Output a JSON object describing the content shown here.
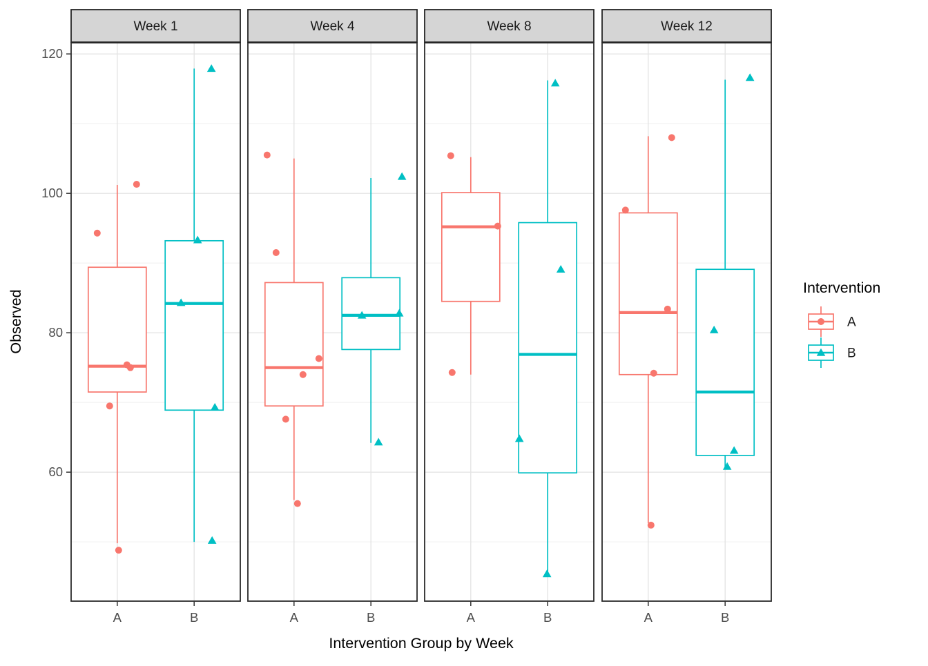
{
  "chart_data": {
    "type": "boxplot",
    "title": "",
    "xlabel": "Intervention Group by Week",
    "ylabel": "Observed",
    "ylim": [
      41.5,
      121.6
    ],
    "y_ticks": [
      60,
      80,
      100,
      120
    ],
    "y_minor_ticks": [
      50,
      70,
      90,
      110
    ],
    "x_categories": [
      "A",
      "B"
    ],
    "series_colors": {
      "A": "#F8766D",
      "B": "#00BFC4"
    },
    "series_shapes": {
      "A": "circle",
      "B": "triangle"
    },
    "grid": {
      "major_color": "#E4E4E4",
      "minor_color": "#EFEFEF"
    },
    "panel": {
      "background": "#FFFFFF",
      "border_color": "#2A2A2A",
      "strip_fill": "#D5D5D5",
      "strip_text_color": "#1A1A1A"
    },
    "axis": {
      "tick_color": "#333333",
      "tick_label_color": "#4D4D4D",
      "title_color": "#000000"
    },
    "legend": {
      "title": "Intervention",
      "position": "right",
      "entries": [
        {
          "label": "A",
          "color": "#F8766D",
          "shape": "circle"
        },
        {
          "label": "B",
          "color": "#00BFC4",
          "shape": "triangle"
        }
      ]
    },
    "facets": [
      {
        "label": "Week 1",
        "groups": [
          {
            "name": "A",
            "q1": 71.5,
            "median": 75.2,
            "q3": 89.4,
            "whisker_low": 49.8,
            "whisker_high": 101.2,
            "points": [
              {
                "v": 101.3,
                "dx": 28
              },
              {
                "v": 94.3,
                "dx": -29
              },
              {
                "v": 75.4,
                "dx": 14
              },
              {
                "v": 75.0,
                "dx": 19
              },
              {
                "v": 69.5,
                "dx": -11
              },
              {
                "v": 48.8,
                "dx": 2
              }
            ]
          },
          {
            "name": "B",
            "q1": 68.9,
            "median": 84.2,
            "q3": 93.2,
            "whisker_low": 50.0,
            "whisker_high": 117.9,
            "points": [
              {
                "v": 117.9,
                "dx": 25
              },
              {
                "v": 93.3,
                "dx": 5
              },
              {
                "v": 84.3,
                "dx": -19
              },
              {
                "v": 69.3,
                "dx": 30
              },
              {
                "v": 50.2,
                "dx": 26
              }
            ]
          }
        ]
      },
      {
        "label": "Week 4",
        "groups": [
          {
            "name": "A",
            "q1": 69.5,
            "median": 75.0,
            "q3": 87.2,
            "whisker_low": 56.0,
            "whisker_high": 105.0,
            "points": [
              {
                "v": 105.5,
                "dx": -39
              },
              {
                "v": 91.5,
                "dx": -26
              },
              {
                "v": 76.3,
                "dx": 36
              },
              {
                "v": 74.0,
                "dx": 13
              },
              {
                "v": 67.6,
                "dx": -12
              },
              {
                "v": 55.5,
                "dx": 5
              }
            ]
          },
          {
            "name": "B",
            "q1": 77.6,
            "median": 82.5,
            "q3": 87.9,
            "whisker_low": 64.2,
            "whisker_high": 102.2,
            "points": [
              {
                "v": 102.4,
                "dx": 45
              },
              {
                "v": 82.8,
                "dx": 41
              },
              {
                "v": 82.5,
                "dx": -13
              },
              {
                "v": 64.3,
                "dx": 11
              }
            ]
          }
        ]
      },
      {
        "label": "Week 8",
        "groups": [
          {
            "name": "A",
            "q1": 84.5,
            "median": 95.2,
            "q3": 100.1,
            "whisker_low": 74.0,
            "whisker_high": 105.2,
            "points": [
              {
                "v": 105.4,
                "dx": -29
              },
              {
                "v": 95.3,
                "dx": 39
              },
              {
                "v": 74.3,
                "dx": -27
              }
            ]
          },
          {
            "name": "B",
            "q1": 59.9,
            "median": 76.9,
            "q3": 95.8,
            "whisker_low": 45.4,
            "whisker_high": 116.2,
            "points": [
              {
                "v": 115.8,
                "dx": 11
              },
              {
                "v": 89.1,
                "dx": 19
              },
              {
                "v": 64.8,
                "dx": -41
              },
              {
                "v": 45.4,
                "dx": -1
              }
            ]
          }
        ]
      },
      {
        "label": "Week 12",
        "groups": [
          {
            "name": "A",
            "q1": 74.0,
            "median": 82.9,
            "q3": 97.2,
            "whisker_low": 52.7,
            "whisker_high": 108.2,
            "points": [
              {
                "v": 108.0,
                "dx": 34
              },
              {
                "v": 97.6,
                "dx": -33
              },
              {
                "v": 83.4,
                "dx": 28
              },
              {
                "v": 74.2,
                "dx": 8
              },
              {
                "v": 52.4,
                "dx": 4
              }
            ]
          },
          {
            "name": "B",
            "q1": 62.4,
            "median": 71.5,
            "q3": 89.1,
            "whisker_low": 60.6,
            "whisker_high": 116.3,
            "points": [
              {
                "v": 116.6,
                "dx": 36
              },
              {
                "v": 80.4,
                "dx": -16
              },
              {
                "v": 63.1,
                "dx": 13
              },
              {
                "v": 60.8,
                "dx": 3
              }
            ]
          }
        ]
      }
    ]
  }
}
